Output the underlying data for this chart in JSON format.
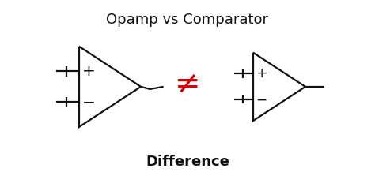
{
  "title": "Opamp vs Comparator",
  "subtitle": "Difference",
  "title_fontsize": 13,
  "subtitle_fontsize": 13,
  "not_equal_color": "#dd0000",
  "not_equal_fontsize": 28,
  "line_color": "#111111",
  "line_width": 1.6,
  "bg_color": "#ffffff",
  "fig_width": 4.74,
  "fig_height": 2.18,
  "dpi": 100
}
